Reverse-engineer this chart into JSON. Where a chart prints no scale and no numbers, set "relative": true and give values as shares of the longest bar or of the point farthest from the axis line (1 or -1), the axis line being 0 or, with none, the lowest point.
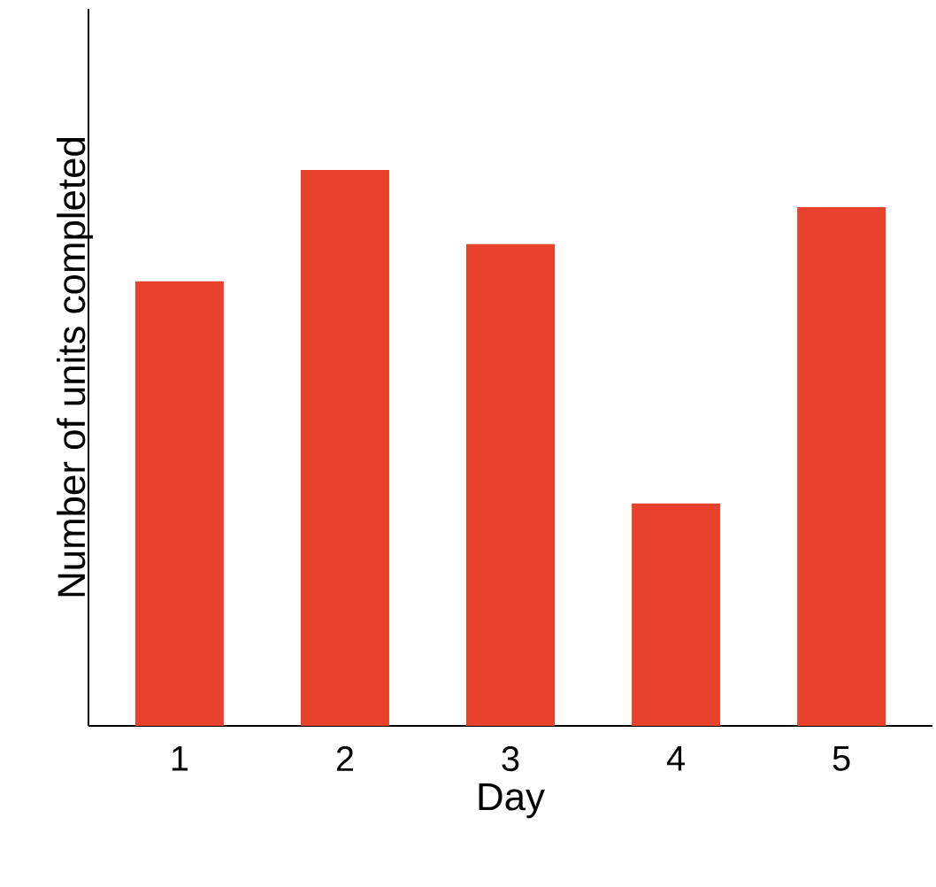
{
  "chart_data": {
    "type": "bar",
    "relative": true,
    "xlabel": "Day",
    "ylabel": "Number of units completed",
    "categories": [
      "1",
      "2",
      "3",
      "4",
      "5"
    ],
    "values": [
      0.8,
      1,
      0.8667,
      0.4,
      0.9333
    ],
    "color": "#e8412c"
  }
}
